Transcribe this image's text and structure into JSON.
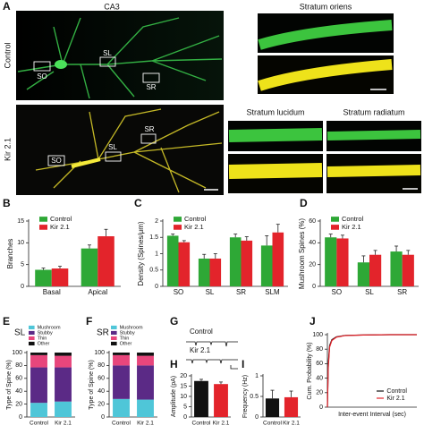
{
  "figure": {
    "letters": [
      "A",
      "B",
      "C",
      "D",
      "E",
      "F",
      "G",
      "H",
      "I",
      "J"
    ],
    "panel_a": {
      "title": "CA3",
      "row_labels": [
        "Control",
        "Kir 2.1"
      ],
      "regions": [
        "SO",
        "SL",
        "SR"
      ],
      "zoom_titles": [
        "Stratum oriens",
        "Stratum lucidum",
        "Stratum radiatum"
      ]
    },
    "panel_g": {
      "labels": [
        "Control",
        "Kir 2.1"
      ]
    }
  },
  "chart_data": [
    {
      "type": "bar",
      "ylabel": "Branches",
      "categories": [
        "Basal",
        "Apical"
      ],
      "ylim": [
        0,
        15
      ],
      "yticks": [
        0,
        5,
        10,
        15
      ],
      "series": [
        {
          "name": "Control",
          "color": "#2ea836",
          "values": [
            3.8,
            8.7
          ],
          "errors": [
            0.4,
            0.8
          ]
        },
        {
          "name": "Kir 2.1",
          "color": "#e3242b",
          "values": [
            4.1,
            11.5
          ],
          "errors": [
            0.5,
            1.6
          ]
        }
      ]
    },
    {
      "type": "bar",
      "ylabel": "Density (Spines/μm)",
      "categories": [
        "SO",
        "SL",
        "SR",
        "SLM"
      ],
      "ylim": [
        0,
        2
      ],
      "yticks": [
        0,
        0.5,
        1,
        1.5,
        2
      ],
      "series": [
        {
          "name": "Control",
          "color": "#2ea836",
          "values": [
            1.55,
            0.85,
            1.5,
            1.25
          ],
          "errors": [
            0.05,
            0.13,
            0.1,
            0.3
          ]
        },
        {
          "name": "Kir 2.1",
          "color": "#e3242b",
          "values": [
            1.35,
            0.85,
            1.4,
            1.65
          ],
          "errors": [
            0.05,
            0.15,
            0.12,
            0.25
          ]
        }
      ]
    },
    {
      "type": "bar",
      "ylabel": "Mushroom Spines (%)",
      "categories": [
        "SO",
        "SL",
        "SR"
      ],
      "ylim": [
        0,
        60
      ],
      "yticks": [
        0,
        20,
        40,
        60
      ],
      "series": [
        {
          "name": "Control",
          "color": "#2ea836",
          "values": [
            45,
            22,
            32
          ],
          "errors": [
            3,
            6,
            5
          ]
        },
        {
          "name": "Kir 2.1",
          "color": "#e3242b",
          "values": [
            44,
            29,
            29
          ],
          "errors": [
            3,
            4,
            4
          ]
        }
      ]
    },
    {
      "type": "bar",
      "stacked": true,
      "title": "SL",
      "ylabel": "Type of Spine (%)",
      "categories": [
        "Control",
        "Kir 2.1"
      ],
      "ylim": [
        0,
        100
      ],
      "yticks": [
        0,
        20,
        40,
        60,
        80,
        100
      ],
      "series": [
        {
          "name": "Mushroom",
          "color": "#4fc6d8",
          "values": [
            22,
            24
          ]
        },
        {
          "name": "Stubby",
          "color": "#5b2a86",
          "values": [
            55,
            53
          ]
        },
        {
          "name": "Thin",
          "color": "#e8467c",
          "values": [
            19,
            18
          ]
        },
        {
          "name": "Other",
          "color": "#111111",
          "values": [
            4,
            5
          ]
        }
      ]
    },
    {
      "type": "bar",
      "stacked": true,
      "title": "SR",
      "ylabel": "Type of Spine (%)",
      "categories": [
        "Control",
        "Kir 2.1"
      ],
      "ylim": [
        0,
        100
      ],
      "yticks": [
        0,
        20,
        40,
        60,
        80,
        100
      ],
      "series": [
        {
          "name": "Mushroom",
          "color": "#4fc6d8",
          "values": [
            28,
            27
          ]
        },
        {
          "name": "Stubby",
          "color": "#5b2a86",
          "values": [
            52,
            53
          ]
        },
        {
          "name": "Thin",
          "color": "#e8467c",
          "values": [
            16,
            15
          ]
        },
        {
          "name": "Other",
          "color": "#111111",
          "values": [
            4,
            5
          ]
        }
      ]
    },
    {
      "type": "bar",
      "ylabel": "Amplitude (pA)",
      "categories": [
        "Control",
        "Kir 2.1"
      ],
      "ylim": [
        0,
        20
      ],
      "yticks": [
        0,
        5,
        10,
        15,
        20
      ],
      "values": [
        17.5,
        16
      ],
      "errors": [
        0.8,
        1.0
      ],
      "colors": [
        "#111111",
        "#e3242b"
      ]
    },
    {
      "type": "bar",
      "ylabel": "Frequency (Hz)",
      "categories": [
        "Control",
        "Kir 2.1"
      ],
      "ylim": [
        0,
        1
      ],
      "yticks": [
        0,
        0.5,
        1
      ],
      "values": [
        0.45,
        0.48
      ],
      "errors": [
        0.2,
        0.15
      ],
      "colors": [
        "#111111",
        "#e3242b"
      ]
    },
    {
      "type": "line",
      "ylabel": "Cum. Probability (%)",
      "xlabel": "Inter-event Interval (sec)",
      "xlim": [
        0,
        20
      ],
      "ylim": [
        0,
        100
      ],
      "yticks": [
        0,
        20,
        40,
        60,
        80,
        100
      ],
      "x": [
        0,
        0.2,
        0.5,
        1,
        2,
        4,
        8,
        14,
        20
      ],
      "series": [
        {
          "name": "Control",
          "color": "#111111",
          "values": [
            0,
            60,
            85,
            93,
            97,
            99,
            99.5,
            100,
            100
          ]
        },
        {
          "name": "Kir 2.1",
          "color": "#e3242b",
          "values": [
            0,
            55,
            83,
            92,
            96.5,
            98.8,
            99.5,
            100,
            100
          ]
        }
      ]
    }
  ]
}
